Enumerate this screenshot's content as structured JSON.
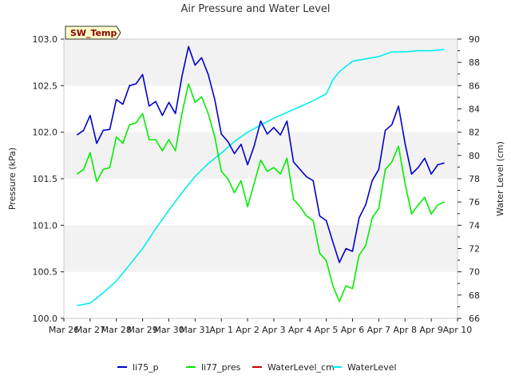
{
  "chart_data": {
    "type": "line",
    "title": "Air Pressure and Water Level",
    "badge": "SW_Temp",
    "ylabel": "Pressure (kPa)",
    "y2label": "Water Level (cm)",
    "ylim": [
      100.0,
      103.0
    ],
    "y2lim": [
      66,
      90
    ],
    "yticks": [
      "100.0",
      "100.5",
      "101.0",
      "101.5",
      "102.0",
      "102.5",
      "103.0"
    ],
    "y2ticks": [
      "66",
      "68",
      "70",
      "72",
      "74",
      "76",
      "78",
      "80",
      "82",
      "84",
      "86",
      "88",
      "90"
    ],
    "xticks": [
      "Mar 26",
      "Mar 27",
      "Mar 28",
      "Mar 29",
      "Mar 30",
      "Mar 31",
      "Apr 1",
      "Apr 2",
      "Apr 3",
      "Apr 4",
      "Apr 5",
      "Apr 6",
      "Apr 7",
      "Apr 8",
      "Apr 9",
      "Apr 10"
    ],
    "xlim": [
      "2024-03-26",
      "2024-04-10"
    ],
    "grid": "horizontal bands",
    "legend_position": "bottom",
    "colors": {
      "li75_p": "#0000cc",
      "li77_pres": "#00ee00",
      "WaterLevel_cm": "#cc0000",
      "WaterLevel": "#00eeee",
      "band": "#f2f2f2",
      "badge_bg": "#ffffcc",
      "badge_text": "#8b0000"
    },
    "series": [
      {
        "name": "li75_p",
        "axis": "left",
        "x": [
          "2024-03-26T12:00",
          "2024-03-26T18:00",
          "2024-03-27T00:00",
          "2024-03-27T06:00",
          "2024-03-27T12:00",
          "2024-03-27T18:00",
          "2024-03-28T00:00",
          "2024-03-28T06:00",
          "2024-03-28T12:00",
          "2024-03-28T18:00",
          "2024-03-29T00:00",
          "2024-03-29T06:00",
          "2024-03-29T12:00",
          "2024-03-29T18:00",
          "2024-03-30T00:00",
          "2024-03-30T06:00",
          "2024-03-30T12:00",
          "2024-03-30T18:00",
          "2024-03-31T00:00",
          "2024-03-31T06:00",
          "2024-03-31T12:00",
          "2024-03-31T18:00",
          "2024-04-01T00:00",
          "2024-04-01T06:00",
          "2024-04-01T12:00",
          "2024-04-01T18:00",
          "2024-04-02T00:00",
          "2024-04-02T06:00",
          "2024-04-02T12:00",
          "2024-04-02T18:00",
          "2024-04-03T00:00",
          "2024-04-03T06:00",
          "2024-04-03T12:00",
          "2024-04-03T18:00",
          "2024-04-04T00:00",
          "2024-04-04T06:00",
          "2024-04-04T12:00",
          "2024-04-04T18:00",
          "2024-04-05T00:00",
          "2024-04-05T06:00",
          "2024-04-05T12:00",
          "2024-04-05T18:00",
          "2024-04-06T00:00",
          "2024-04-06T06:00",
          "2024-04-06T12:00",
          "2024-04-06T18:00",
          "2024-04-07T00:00",
          "2024-04-07T06:00",
          "2024-04-07T12:00",
          "2024-04-07T18:00",
          "2024-04-08T00:00",
          "2024-04-08T06:00",
          "2024-04-08T12:00",
          "2024-04-08T18:00",
          "2024-04-09T00:00",
          "2024-04-09T06:00",
          "2024-04-09T12:00"
        ],
        "values": [
          101.97,
          102.02,
          102.18,
          101.88,
          102.02,
          102.03,
          102.35,
          102.3,
          102.5,
          102.52,
          102.62,
          102.28,
          102.33,
          102.18,
          102.32,
          102.2,
          102.6,
          102.92,
          102.72,
          102.8,
          102.62,
          102.35,
          101.98,
          101.9,
          101.77,
          101.87,
          101.65,
          101.85,
          102.12,
          101.98,
          102.05,
          101.97,
          102.12,
          101.68,
          101.6,
          101.52,
          101.48,
          101.1,
          101.05,
          100.82,
          100.6,
          100.75,
          100.72,
          101.08,
          101.22,
          101.48,
          101.6,
          102.02,
          102.08,
          102.28,
          101.88,
          101.55,
          101.62,
          101.72,
          101.55,
          101.65,
          101.67
        ]
      },
      {
        "name": "li77_pres",
        "axis": "left",
        "x": [
          "2024-03-26T12:00",
          "2024-03-26T18:00",
          "2024-03-27T00:00",
          "2024-03-27T06:00",
          "2024-03-27T12:00",
          "2024-03-27T18:00",
          "2024-03-28T00:00",
          "2024-03-28T06:00",
          "2024-03-28T12:00",
          "2024-03-28T18:00",
          "2024-03-29T00:00",
          "2024-03-29T06:00",
          "2024-03-29T12:00",
          "2024-03-29T18:00",
          "2024-03-30T00:00",
          "2024-03-30T06:00",
          "2024-03-30T12:00",
          "2024-03-30T18:00",
          "2024-03-31T00:00",
          "2024-03-31T06:00",
          "2024-03-31T12:00",
          "2024-03-31T18:00",
          "2024-04-01T00:00",
          "2024-04-01T06:00",
          "2024-04-01T12:00",
          "2024-04-01T18:00",
          "2024-04-02T00:00",
          "2024-04-02T06:00",
          "2024-04-02T12:00",
          "2024-04-02T18:00",
          "2024-04-03T00:00",
          "2024-04-03T06:00",
          "2024-04-03T12:00",
          "2024-04-03T18:00",
          "2024-04-04T00:00",
          "2024-04-04T06:00",
          "2024-04-04T12:00",
          "2024-04-04T18:00",
          "2024-04-05T00:00",
          "2024-04-05T06:00",
          "2024-04-05T12:00",
          "2024-04-05T18:00",
          "2024-04-06T00:00",
          "2024-04-06T06:00",
          "2024-04-06T12:00",
          "2024-04-06T18:00",
          "2024-04-07T00:00",
          "2024-04-07T06:00",
          "2024-04-07T12:00",
          "2024-04-07T18:00",
          "2024-04-08T00:00",
          "2024-04-08T06:00",
          "2024-04-08T12:00",
          "2024-04-08T18:00",
          "2024-04-09T00:00",
          "2024-04-09T06:00",
          "2024-04-09T12:00"
        ],
        "values": [
          101.55,
          101.6,
          101.78,
          101.47,
          101.6,
          101.62,
          101.95,
          101.88,
          102.08,
          102.1,
          102.2,
          101.92,
          101.92,
          101.8,
          101.92,
          101.8,
          102.2,
          102.52,
          102.32,
          102.38,
          102.2,
          101.95,
          101.58,
          101.5,
          101.35,
          101.48,
          101.2,
          101.45,
          101.7,
          101.58,
          101.62,
          101.55,
          101.72,
          101.28,
          101.2,
          101.1,
          101.05,
          100.7,
          100.62,
          100.35,
          100.18,
          100.35,
          100.32,
          100.68,
          100.78,
          101.08,
          101.18,
          101.6,
          101.68,
          101.85,
          101.45,
          101.12,
          101.22,
          101.3,
          101.12,
          101.22,
          101.25
        ]
      },
      {
        "name": "WaterLevel_cm",
        "axis": "right",
        "x": [],
        "values": []
      },
      {
        "name": "WaterLevel",
        "axis": "right",
        "x": [
          "2024-03-26T12:00",
          "2024-03-27T00:00",
          "2024-03-27T12:00",
          "2024-03-28T00:00",
          "2024-03-28T12:00",
          "2024-03-29T00:00",
          "2024-03-29T12:00",
          "2024-03-30T00:00",
          "2024-03-30T12:00",
          "2024-03-31T00:00",
          "2024-03-31T12:00",
          "2024-04-01T00:00",
          "2024-04-01T12:00",
          "2024-04-02T00:00",
          "2024-04-02T12:00",
          "2024-04-03T00:00",
          "2024-04-03T12:00",
          "2024-04-04T00:00",
          "2024-04-04T12:00",
          "2024-04-05T00:00",
          "2024-04-05T06:00",
          "2024-04-05T12:00",
          "2024-04-06T00:00",
          "2024-04-06T12:00",
          "2024-04-07T00:00",
          "2024-04-07T12:00",
          "2024-04-08T00:00",
          "2024-04-08T12:00",
          "2024-04-09T00:00",
          "2024-04-09T12:00"
        ],
        "values": [
          67.1,
          67.3,
          68.2,
          69.2,
          70.6,
          72.0,
          73.7,
          75.3,
          76.8,
          78.2,
          79.3,
          80.2,
          81.2,
          82.0,
          82.6,
          83.2,
          83.7,
          84.2,
          84.7,
          85.3,
          86.5,
          87.2,
          88.1,
          88.3,
          88.5,
          88.9,
          88.9,
          89.0,
          89.0,
          89.1
        ]
      }
    ]
  }
}
